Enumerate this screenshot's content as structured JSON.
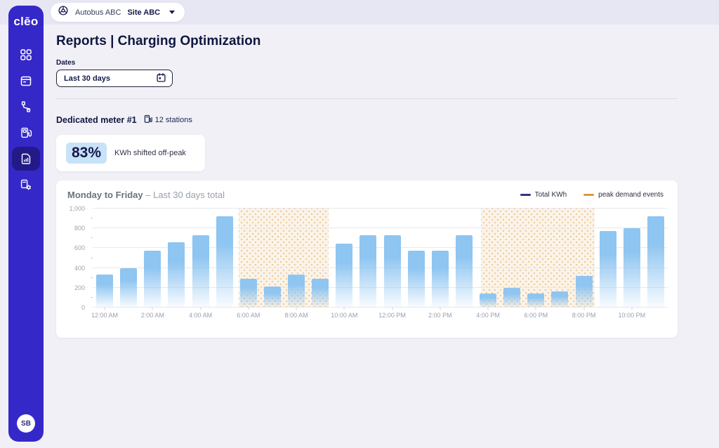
{
  "brand": {
    "logo": "clēo"
  },
  "topbar": {
    "org": "Autobus ABC",
    "site": "Site ABC"
  },
  "sidebar": {
    "avatar_initials": "SB"
  },
  "page": {
    "title": "Reports | Charging Optimization",
    "dates_label": "Dates",
    "date_value": "Last 30 days"
  },
  "meter": {
    "title": "Dedicated meter #1",
    "stations_count": "12 stations"
  },
  "kpi": {
    "value": "83%",
    "label": "KWh shifted off-peak"
  },
  "chart": {
    "title_bold": "Monday to Friday",
    "title_rest": "– Last 30 days total",
    "legend": [
      {
        "label": "Total KWh",
        "color": "#32347F"
      },
      {
        "label": "peak demand events",
        "color": "#DE9A3C"
      }
    ]
  },
  "chart_data": {
    "type": "bar",
    "title": "Monday to Friday – Last 30 days total",
    "series_name": "Total KWh",
    "x": [
      "12:00 AM",
      "1:00 AM",
      "2:00 AM",
      "3:00 AM",
      "4:00 AM",
      "5:00 AM",
      "6:00 AM",
      "7:00 AM",
      "8:00 AM",
      "9:00 AM",
      "10:00 AM",
      "11:00 AM",
      "12:00 PM",
      "1:00 PM",
      "2:00 PM",
      "3:00 PM",
      "4:00 PM",
      "5:00 PM",
      "6:00 PM",
      "7:00 PM",
      "8:00 PM",
      "9:00 PM",
      "10:00 PM",
      "11:00 PM"
    ],
    "values": [
      330,
      400,
      575,
      660,
      730,
      920,
      290,
      210,
      330,
      290,
      645,
      730,
      730,
      575,
      575,
      730,
      140,
      200,
      140,
      165,
      320,
      775,
      800,
      920
    ],
    "ylim": [
      0,
      1000
    ],
    "yticks": [
      0,
      200,
      400,
      600,
      800,
      1000
    ],
    "ytick_labels": [
      "0",
      "200",
      "400",
      "600",
      "800",
      "1,000"
    ],
    "ytick_minor": [
      100,
      300,
      500,
      700,
      900
    ],
    "xtick_positions": [
      0,
      2,
      4,
      6,
      8,
      10,
      12,
      14,
      16,
      18,
      20,
      22
    ],
    "xtick_labels": [
      "12:00 AM",
      "2:00 AM",
      "4:00 AM",
      "6:00 AM",
      "8:00 AM",
      "10:00 AM",
      "12:00 PM",
      "2:00 PM",
      "4:00 PM",
      "6:00 PM",
      "8:00 PM",
      "10:00 PM"
    ],
    "bar_color": "#8EC5F1",
    "peak_regions": [
      {
        "label": "peak demand events",
        "start_hour": 5.6,
        "end_hour": 9.35
      },
      {
        "label": "peak demand events",
        "start_hour": 15.7,
        "end_hour": 20.45
      }
    ],
    "grid": true,
    "legend_position": "top-right"
  }
}
